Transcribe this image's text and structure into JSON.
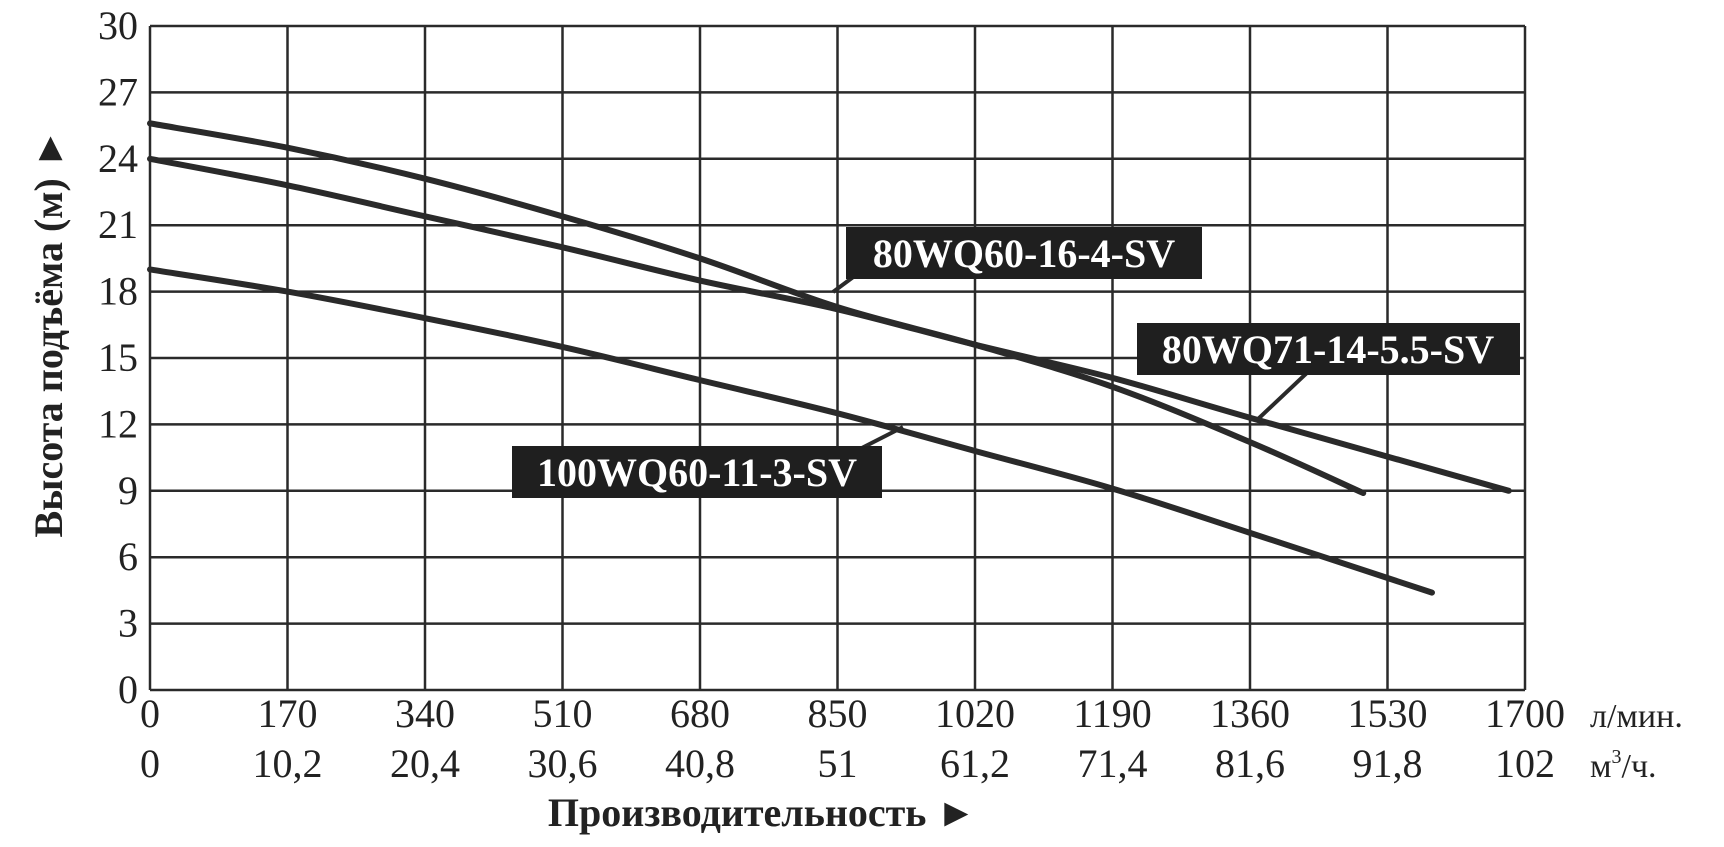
{
  "chart_data": {
    "type": "line",
    "title": "",
    "ylabel": "Высота подъёма (м)",
    "xlabel": "Производительность",
    "ylim": [
      0,
      30
    ],
    "yticks": [
      "0",
      "3",
      "6",
      "9",
      "12",
      "15",
      "18",
      "21",
      "24",
      "27",
      "30"
    ],
    "xlim": [
      0,
      1700
    ],
    "xticks_primary": [
      "0",
      "170",
      "340",
      "510",
      "680",
      "850",
      "1020",
      "1190",
      "1360",
      "1530",
      "1700"
    ],
    "xticks_secondary": [
      "0",
      "10,2",
      "20,4",
      "30,6",
      "40,8",
      "51",
      "61,2",
      "71,4",
      "81,6",
      "91,8",
      "102"
    ],
    "xunit_primary": "л/мин.",
    "xunit_secondary_base": "м",
    "xunit_secondary_sup": "3",
    "xunit_secondary_tail": "/ч.",
    "grid": true,
    "series": [
      {
        "name": "80WQ60-16-4-SV",
        "x": [
          0,
          170,
          340,
          510,
          680,
          850,
          1020,
          1190,
          1360,
          1500
        ],
        "y": [
          25.6,
          24.5,
          23.1,
          21.4,
          19.5,
          17.3,
          15.6,
          13.7,
          11.2,
          8.9
        ]
      },
      {
        "name": "80WQ71-14-5.5-SV",
        "x": [
          0,
          170,
          340,
          510,
          680,
          850,
          1020,
          1190,
          1360,
          1680
        ],
        "y": [
          24.0,
          22.8,
          21.4,
          20.0,
          18.5,
          17.2,
          15.6,
          14.1,
          12.3,
          9.0
        ]
      },
      {
        "name": "100WQ60-11-3-SV",
        "x": [
          0,
          170,
          340,
          510,
          680,
          850,
          1020,
          1190,
          1360,
          1585
        ],
        "y": [
          19.0,
          18.0,
          16.8,
          15.5,
          14.0,
          12.5,
          10.8,
          9.1,
          7.1,
          4.4
        ]
      }
    ]
  },
  "labels": [
    {
      "text": "80WQ60-16-4-SV"
    },
    {
      "text": "80WQ71-14-5.5-SV"
    },
    {
      "text": "100WQ60-11-3-SV"
    }
  ],
  "axis_arrow": "►"
}
